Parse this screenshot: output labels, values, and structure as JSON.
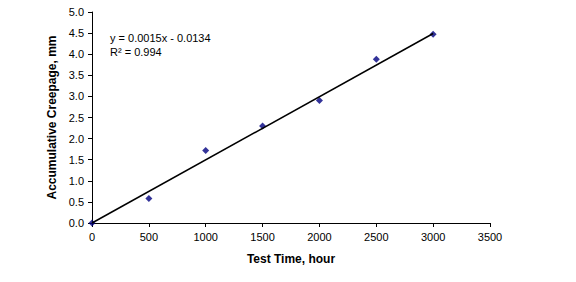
{
  "chart_data": {
    "type": "scatter",
    "x_label": "Test Time, hour",
    "y_label": "Accumulative Creepage, mm",
    "annotations": [
      "y = 0.0015x - 0.0134",
      "R² = 0.994"
    ],
    "xlim": [
      0,
      3500
    ],
    "xticks": [
      0,
      500,
      1000,
      1500,
      2000,
      2500,
      3000,
      3500
    ],
    "ylim": [
      0,
      5
    ],
    "yticks": [
      {
        "value": 0,
        "label": "0.0"
      },
      0.5,
      {
        "value": 1,
        "label": "1.0"
      },
      1.5,
      {
        "value": 2,
        "label": "2.0"
      },
      2.5,
      {
        "value": 3,
        "label": "3.0"
      },
      3.5,
      {
        "value": 4,
        "label": "4.0"
      },
      4.5,
      {
        "value": 5,
        "label": "5.0"
      }
    ],
    "grid": false,
    "series": [
      {
        "type": "scatter",
        "color": "#000080",
        "marker": "diamond",
        "x": [
          0,
          500,
          1000,
          1500,
          2000,
          2500,
          3000
        ],
        "values": [
          0,
          0.58,
          1.72,
          2.3,
          2.9,
          3.88,
          4.47
        ]
      },
      {
        "type": "line",
        "color": "#000000",
        "marker": "none",
        "line_style": "solid",
        "x": [
          0,
          3000
        ],
        "values": [
          0,
          4.49
        ]
      }
    ]
  }
}
